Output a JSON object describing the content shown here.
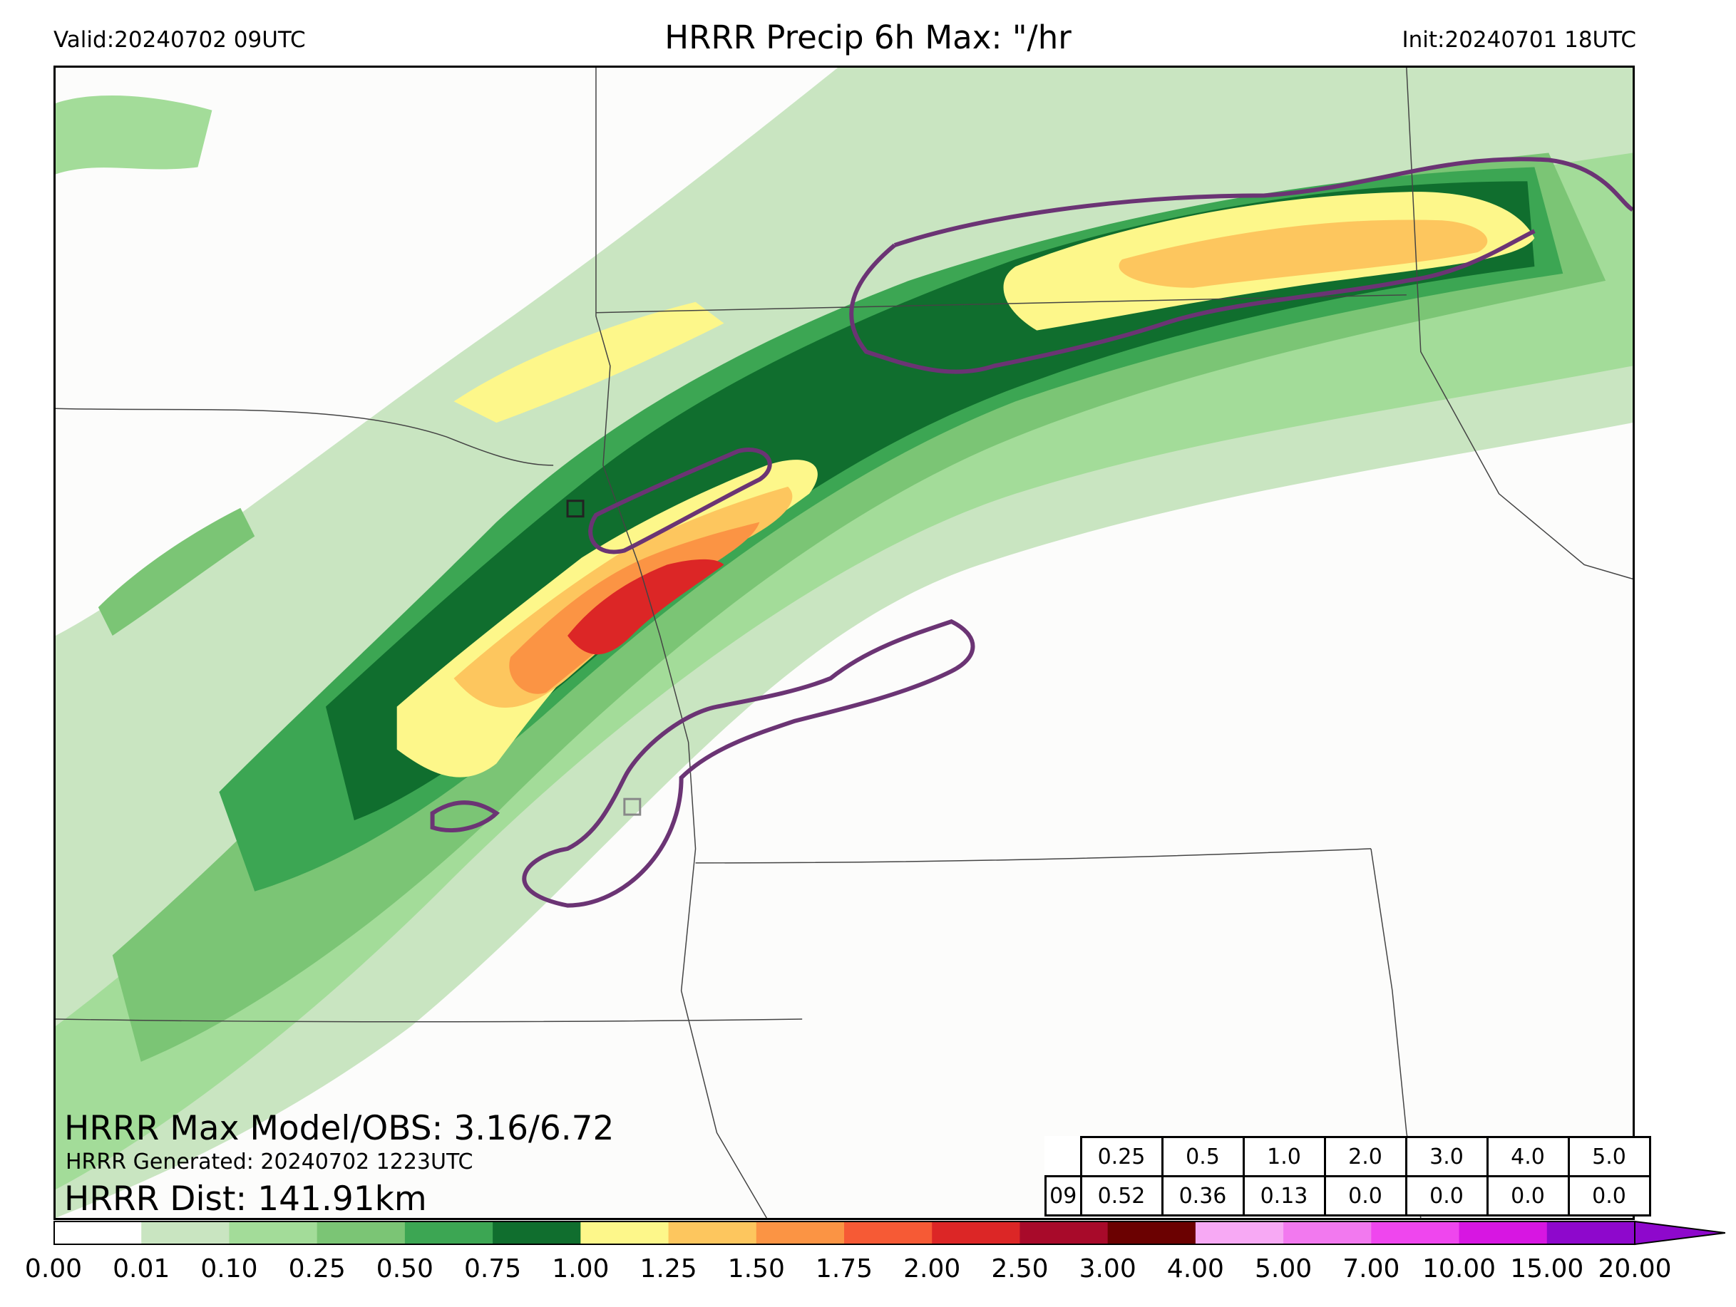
{
  "header": {
    "valid": "Valid:20240702 09UTC",
    "title": "HRRR Precip 6h Max: \"/hr",
    "init": "Init:20240701 18UTC"
  },
  "stats": {
    "max_line": "HRRR Max Model/OBS: 3.16/6.72",
    "generated_line": "HRRR Generated: 20240702 1223UTC",
    "dist_line": "HRRR Dist: 141.91km"
  },
  "threshold_table": {
    "headers": [
      "0.25",
      "0.5",
      "1.0",
      "2.0",
      "3.0",
      "4.0",
      "5.0"
    ],
    "row_label": "09",
    "values": [
      "0.52",
      "0.36",
      "0.13",
      "0.0",
      "0.0",
      "0.0",
      "0.0"
    ]
  },
  "colorbar": {
    "ticks": [
      "0.00",
      "0.01",
      "0.10",
      "0.25",
      "0.50",
      "0.75",
      "1.00",
      "1.25",
      "1.50",
      "1.75",
      "2.00",
      "2.50",
      "3.00",
      "4.00",
      "5.00",
      "7.00",
      "10.00",
      "15.00",
      "20.00"
    ],
    "colors": [
      "#ffffff",
      "#c9e5c1",
      "#a3dc99",
      "#7bc575",
      "#3ca653",
      "#106e2e",
      "#fdf78a",
      "#fdc65e",
      "#fb9444",
      "#f65a35",
      "#dc2626",
      "#a80a2a",
      "#6b0101",
      "#f7a9f4",
      "#f279ef",
      "#ef46ee",
      "#d716e2",
      "#8e08cc"
    ],
    "extend_color": "#8e08cc"
  },
  "map": {
    "colors": {
      "c1": "#c9e5c1",
      "c2": "#a3dc99",
      "c3": "#7bc575",
      "c4": "#3ca653",
      "c5": "#106e2e",
      "c6": "#fdf78a",
      "c7": "#fdc65e",
      "c8": "#fb9444",
      "c9": "#f65a35",
      "c10": "#dc2626",
      "contour": "#6b3474",
      "border": "#444444"
    }
  }
}
